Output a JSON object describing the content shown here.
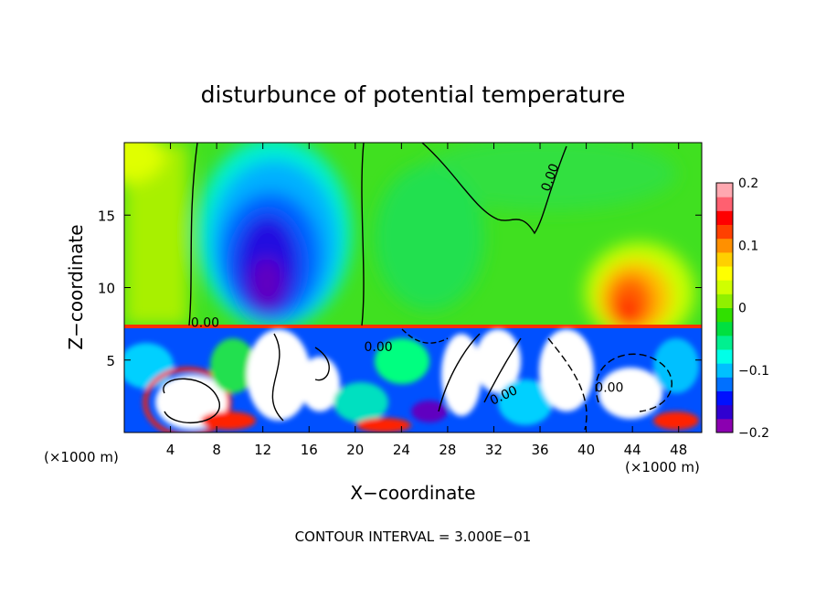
{
  "chart_data": {
    "type": "heatmap",
    "title": "disturbunce of potential temperature",
    "xlabel": "X−coordinate",
    "ylabel": "Z−coordinate",
    "x_unit_label": "(×1000 m)",
    "z_unit_label": "(×1000 m)",
    "footer": "CONTOUR INTERVAL = 3.000E−01",
    "xlim": [
      0,
      50
    ],
    "ylim": [
      0,
      20
    ],
    "x_ticks": [
      4,
      8,
      12,
      16,
      20,
      24,
      28,
      32,
      36,
      40,
      44,
      48
    ],
    "y_ticks": [
      5,
      10,
      15
    ],
    "contour_labels": [
      {
        "text": "0.00",
        "x": 37.2,
        "z": 17.5,
        "rotate": -70
      },
      {
        "text": "0.00",
        "x": 7.0,
        "z": 7.3,
        "rotate": 0
      },
      {
        "text": "0.00",
        "x": 22.0,
        "z": 5.6,
        "rotate": 0
      },
      {
        "text": "0.00",
        "x": 33.0,
        "z": 2.3,
        "rotate": -25
      },
      {
        "text": "0.00",
        "x": 42.0,
        "z": 2.8,
        "rotate": 0
      }
    ],
    "colorbar": {
      "range": [
        -0.2,
        0.2
      ],
      "ticks": [
        {
          "label": "0.2",
          "value": 0.2
        },
        {
          "label": "0.1",
          "value": 0.1
        },
        {
          "label": "0",
          "value": 0.0
        },
        {
          "label": "−0.1",
          "value": -0.1
        },
        {
          "label": "−0.2",
          "value": -0.2
        }
      ],
      "colors": [
        "#8b00b0",
        "#3000d0",
        "#0010ff",
        "#0070ff",
        "#00c0ff",
        "#00ffe8",
        "#00f090",
        "#00e040",
        "#30e000",
        "#90f000",
        "#d0ff00",
        "#ffff00",
        "#ffd000",
        "#ff9000",
        "#ff4000",
        "#ff0000",
        "#ff6070",
        "#ffa8b0"
      ]
    }
  }
}
